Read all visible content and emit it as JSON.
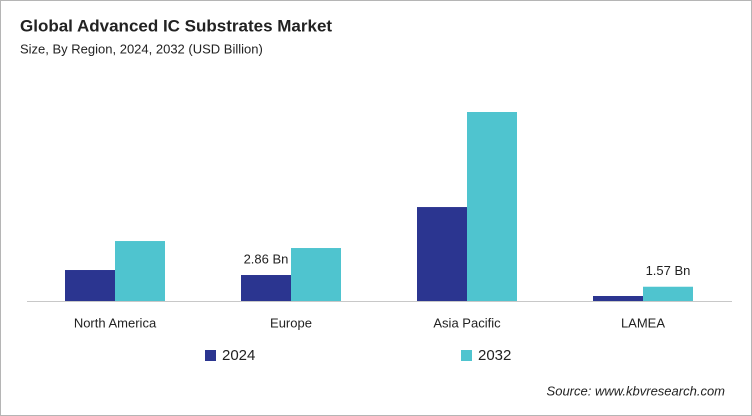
{
  "chart_data": {
    "type": "bar",
    "title": "Global Advanced IC Substrates Market",
    "subtitle": "Size, By Region, 2024, 2032 (USD Billion)",
    "categories": [
      "North America",
      "Europe",
      "Asia Pacific",
      "LAMEA"
    ],
    "series": [
      {
        "name": "2024",
        "color": "#2b3590",
        "values": [
          3.41,
          2.86,
          10.34,
          0.55
        ],
        "value_labels": [
          null,
          "2.86 Bn",
          null,
          null
        ]
      },
      {
        "name": "2032",
        "color": "#4fc4cf",
        "values": [
          6.6,
          5.83,
          20.8,
          1.57
        ],
        "value_labels": [
          null,
          null,
          null,
          "1.57 Bn"
        ]
      }
    ],
    "source": "Source: www.kbvresearch.com"
  }
}
